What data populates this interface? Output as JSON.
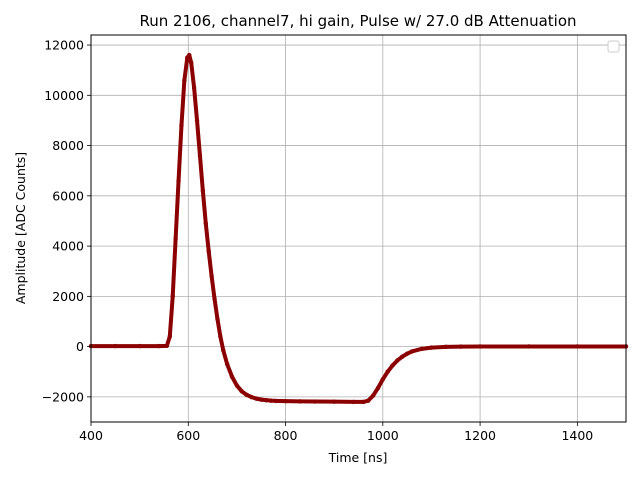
{
  "chart_data": {
    "type": "scatter",
    "title": "Run 2106, channel7, hi gain, Pulse w/ 27.0 dB Attenuation",
    "xlabel": "Time [ns]",
    "ylabel": "Amplitude [ADC Counts]",
    "xlim": [
      400,
      1500
    ],
    "ylim": [
      -3000,
      12400
    ],
    "xticks": [
      400,
      600,
      800,
      1000,
      1200,
      1400
    ],
    "xtick_labels": [
      "400",
      "600",
      "800",
      "1000",
      "1200",
      "1400"
    ],
    "yticks": [
      -2000,
      0,
      2000,
      4000,
      6000,
      8000,
      10000,
      12000
    ],
    "ytick_labels": [
      "−2000",
      "0",
      "2000",
      "4000",
      "6000",
      "8000",
      "10000",
      "12000"
    ],
    "grid": true,
    "legend": "top-right (empty)",
    "marker_color": "#8b0000",
    "series": [
      {
        "x": [
          400,
          450,
          500,
          540,
          556,
          562,
          568,
          574,
          580,
          586,
          592,
          598,
          602,
          606,
          612,
          618,
          624,
          630,
          636,
          642,
          648,
          654,
          660,
          666,
          672,
          680,
          690,
          700,
          710,
          720,
          730,
          740,
          750,
          760,
          770,
          780,
          800,
          830,
          860,
          900,
          940,
          960,
          970,
          980,
          990,
          1000,
          1010,
          1020,
          1030,
          1040,
          1050,
          1060,
          1080,
          1100,
          1130,
          1160,
          1200,
          1300,
          1400,
          1500
        ],
        "y": [
          20,
          20,
          20,
          20,
          30,
          400,
          2000,
          4300,
          6600,
          8800,
          10600,
          11500,
          11600,
          11300,
          10300,
          9000,
          7600,
          6200,
          4900,
          3800,
          2800,
          1900,
          1100,
          400,
          -150,
          -700,
          -1200,
          -1550,
          -1780,
          -1920,
          -2010,
          -2070,
          -2110,
          -2130,
          -2150,
          -2160,
          -2170,
          -2180,
          -2185,
          -2190,
          -2200,
          -2200,
          -2150,
          -1950,
          -1650,
          -1300,
          -1000,
          -750,
          -550,
          -400,
          -280,
          -190,
          -90,
          -40,
          -10,
          0,
          5,
          5,
          5,
          5
        ]
      }
    ]
  }
}
